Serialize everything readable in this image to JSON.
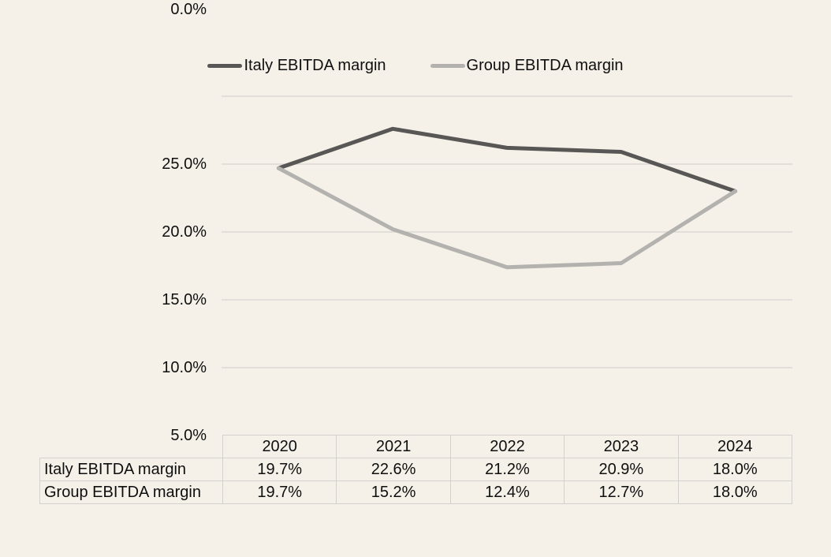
{
  "page": {
    "background_color": "#f5f1e9",
    "gridline_color": "#dbd8d4",
    "table_border_color": "#d3d1cd",
    "text_color": "#0f0f0f"
  },
  "chart_data": {
    "type": "line",
    "categories": [
      "2020",
      "2021",
      "2022",
      "2023",
      "2024"
    ],
    "series": [
      {
        "name": "Italy EBITDA margin",
        "color": "#595755",
        "values": [
          19.7,
          22.6,
          21.2,
          20.9,
          18.0
        ]
      },
      {
        "name": "Group EBITDA margin",
        "color": "#b3b2af",
        "values": [
          19.7,
          15.2,
          12.4,
          12.7,
          18.0
        ]
      }
    ],
    "title": "",
    "xlabel": "",
    "ylabel": "",
    "ylim": [
      0,
      25
    ],
    "yticks": [
      25,
      20,
      15,
      10,
      5,
      0
    ],
    "ytick_labels": [
      "25.0%",
      "20.0%",
      "15.0%",
      "10.0%",
      "5.0%",
      "0.0%"
    ],
    "grid": "horizontal",
    "legend_position": "top",
    "data_table_shown": true
  },
  "table": {
    "col_headers": [
      "2020",
      "2021",
      "2022",
      "2023",
      "2024"
    ],
    "rows": [
      {
        "label": "Italy EBITDA margin",
        "values": [
          "19.7%",
          "22.6%",
          "21.2%",
          "20.9%",
          "18.0%"
        ]
      },
      {
        "label": "Group EBITDA margin",
        "values": [
          "19.7%",
          "15.2%",
          "12.4%",
          "12.7%",
          "18.0%"
        ]
      }
    ]
  }
}
